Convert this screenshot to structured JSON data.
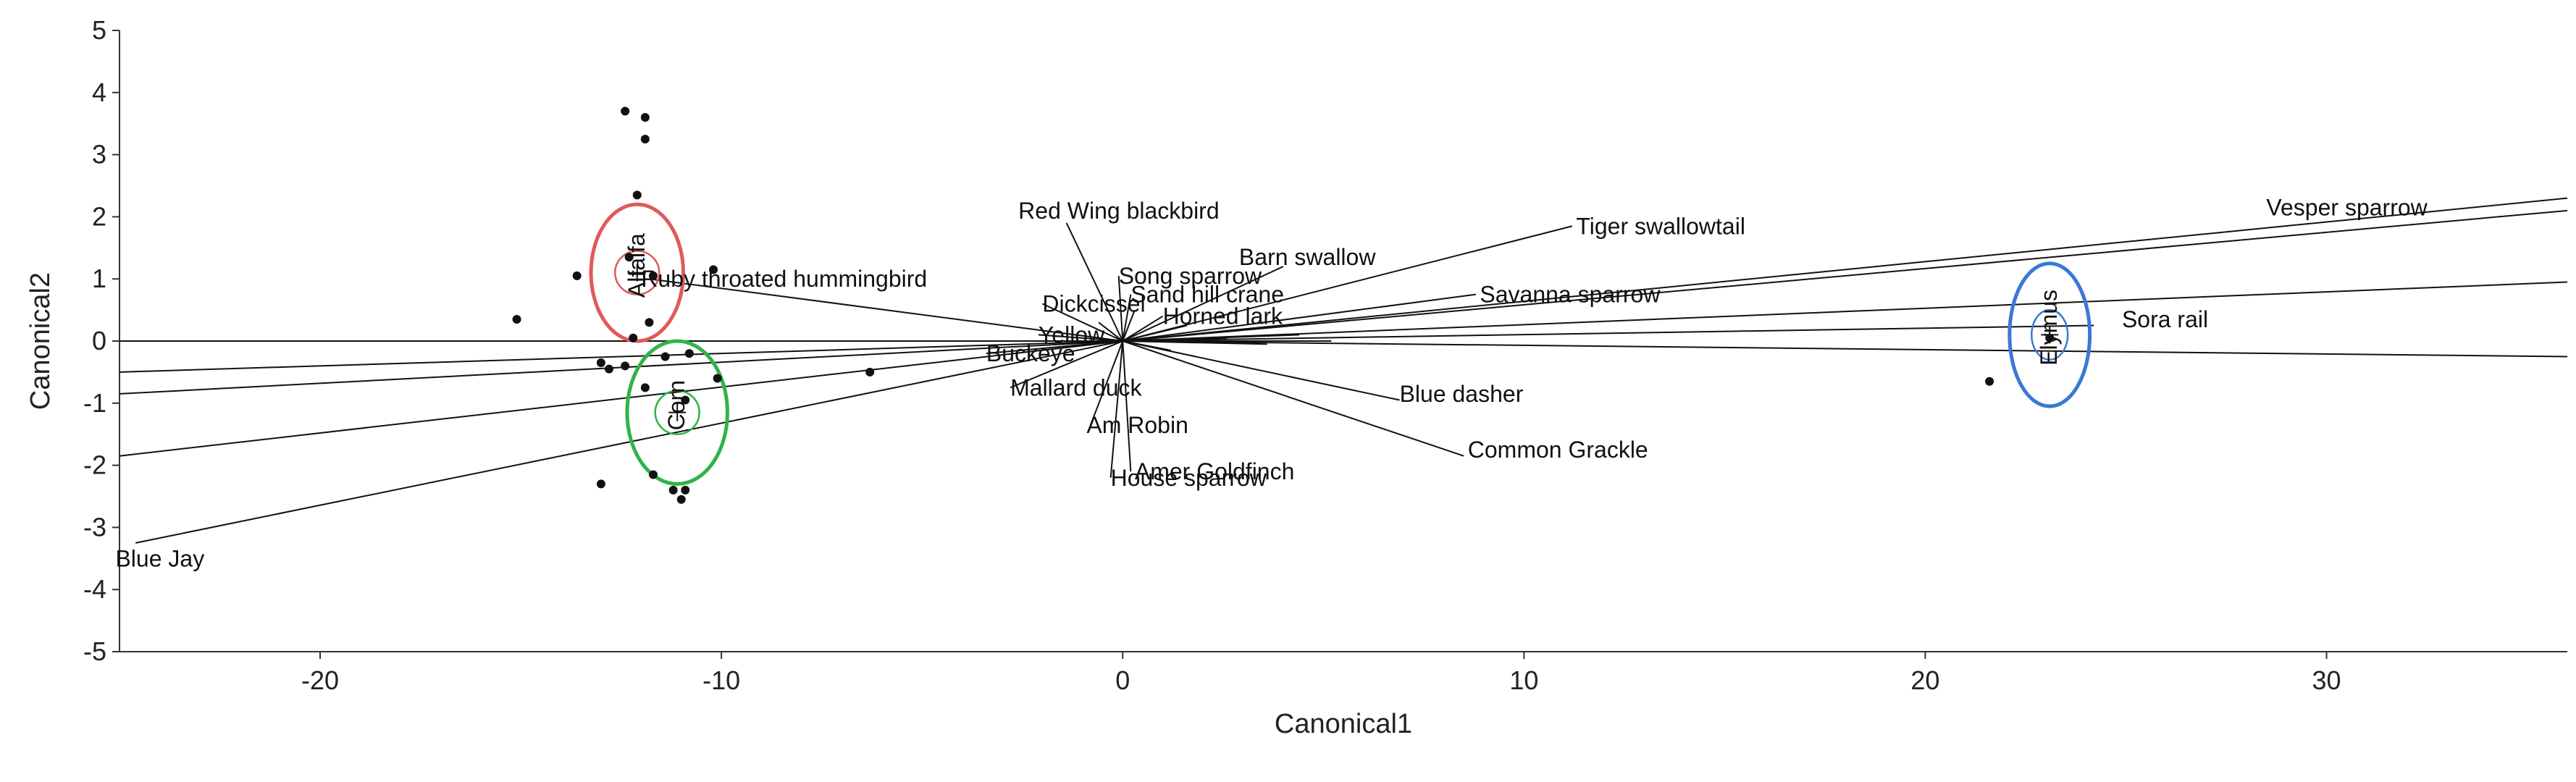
{
  "chart_data": {
    "type": "scatter",
    "title": "",
    "xlabel": "Canonical1",
    "ylabel": "Canonical2",
    "xlim": [
      -25,
      36
    ],
    "ylim": [
      -5,
      5
    ],
    "xticks": [
      -20,
      -10,
      0,
      10,
      20,
      30
    ],
    "yticks": [
      5,
      4,
      3,
      2,
      1,
      0,
      -1,
      -2,
      -3,
      -4,
      -5
    ],
    "grid": false,
    "legend": "none",
    "colors": {
      "Alfalfa": "#e05a5a",
      "Corn": "#2fb34a",
      "Elymus": "#3a78d4",
      "rays": "#111111",
      "points": "#111111"
    },
    "groups": [
      {
        "name": "Alfalfa",
        "center": [
          -12.1,
          1.1
        ],
        "inner_radius": [
          0.55,
          0.35
        ],
        "outer_radius": [
          1.15,
          1.1
        ]
      },
      {
        "name": "Corn",
        "center": [
          -11.1,
          -1.15
        ],
        "inner_radius": [
          0.55,
          0.35
        ],
        "outer_radius": [
          1.25,
          1.15
        ]
      },
      {
        "name": "Elymus",
        "center": [
          23.1,
          0.1
        ],
        "inner_radius": [
          0.45,
          0.4
        ],
        "outer_radius": [
          1.0,
          1.15
        ]
      }
    ],
    "points": [
      [
        -12.4,
        3.7
      ],
      [
        -11.9,
        3.6
      ],
      [
        -11.9,
        3.25
      ],
      [
        -12.1,
        2.35
      ],
      [
        -12.3,
        1.35
      ],
      [
        -13.6,
        1.05
      ],
      [
        -11.7,
        1.05
      ],
      [
        -10.2,
        1.15
      ],
      [
        -15.1,
        0.35
      ],
      [
        -11.8,
        0.3
      ],
      [
        -12.2,
        0.05
      ],
      [
        -13.0,
        -0.35
      ],
      [
        -12.8,
        -0.45
      ],
      [
        -12.4,
        -0.4
      ],
      [
        -11.4,
        -0.25
      ],
      [
        -10.8,
        -0.2
      ],
      [
        -11.9,
        -0.75
      ],
      [
        -10.9,
        -0.95
      ],
      [
        -10.1,
        -0.6
      ],
      [
        -6.3,
        -0.5
      ],
      [
        -11.7,
        -2.15
      ],
      [
        -13.0,
        -2.3
      ],
      [
        -11.2,
        -2.4
      ],
      [
        -10.9,
        -2.4
      ],
      [
        -11.0,
        -2.55
      ],
      [
        23.1,
        0.05
      ],
      [
        21.6,
        -0.65
      ]
    ],
    "vectors": [
      {
        "label": "Vesper sparrow",
        "end": [
          36,
          2.3
        ],
        "label_at": [
          28.5,
          2.15
        ]
      },
      {
        "label": "",
        "end": [
          36,
          2.1
        ],
        "label_at": null
      },
      {
        "label": "Tiger swallowtail",
        "end": [
          11.2,
          1.85
        ],
        "label_at": [
          11.3,
          1.85
        ]
      },
      {
        "label": "Barn swallow",
        "end": [
          4.0,
          1.2
        ],
        "label_at": [
          2.9,
          1.35
        ]
      },
      {
        "label": "Savanna sparrow",
        "end": [
          8.8,
          0.75
        ],
        "label_at": [
          8.9,
          0.75
        ]
      },
      {
        "label": "",
        "end": [
          36,
          0.95
        ],
        "label_at": null
      },
      {
        "label": "Sora rail",
        "end": [
          24.2,
          0.25
        ],
        "label_at": [
          24.9,
          0.35
        ]
      },
      {
        "label": "",
        "end": [
          36,
          -0.25
        ],
        "label_at": null
      },
      {
        "label": "Blue dasher",
        "end": [
          6.9,
          -0.95
        ],
        "label_at": [
          6.9,
          -0.85
        ]
      },
      {
        "label": "Common Grackle",
        "end": [
          8.5,
          -1.85
        ],
        "label_at": [
          8.6,
          -1.75
        ]
      },
      {
        "label": "Amer Goldfinch",
        "end": [
          0.2,
          -2.1
        ],
        "label_at": [
          0.3,
          -2.1
        ]
      },
      {
        "label": "House sparrow",
        "end": [
          -0.3,
          -2.2
        ],
        "label_at": [
          -0.3,
          -2.2
        ]
      },
      {
        "label": "Am Robin",
        "end": [
          -0.8,
          -1.35
        ],
        "label_at": [
          -0.9,
          -1.35
        ]
      },
      {
        "label": "Mallard duck",
        "end": [
          -2.8,
          -0.75
        ],
        "label_at": [
          -2.8,
          -0.75
        ]
      },
      {
        "label": "Buckeye",
        "end": [
          -3.4,
          -0.2
        ],
        "label_at": [
          -3.4,
          -0.2
        ]
      },
      {
        "label": "Yellow",
        "end": [
          -2.1,
          0.1
        ],
        "label_at": [
          -2.1,
          0.1
        ]
      },
      {
        "label": "Dickcissel",
        "end": [
          -2.0,
          0.6
        ],
        "label_at": [
          -2.0,
          0.6
        ]
      },
      {
        "label": "Song sparrow",
        "end": [
          -0.1,
          1.05
        ],
        "label_at": [
          -0.1,
          1.05
        ]
      },
      {
        "label": "Sand hill crane",
        "end": [
          0.2,
          0.75
        ],
        "label_at": [
          0.2,
          0.75
        ]
      },
      {
        "label": "Horned lark",
        "end": [
          1.0,
          0.4
        ],
        "label_at": [
          1.0,
          0.4
        ]
      },
      {
        "label": "Red Wing blackbird",
        "end": [
          -1.4,
          1.9
        ],
        "label_at": [
          -2.6,
          2.1
        ]
      },
      {
        "label": "Ruby throated hummingbird",
        "end": [
          -11.8,
          1.0
        ],
        "label_at": [
          -12.0,
          1.0
        ]
      },
      {
        "label": "",
        "end": [
          -25,
          0.0
        ],
        "label_at": null
      },
      {
        "label": "",
        "end": [
          -25,
          -0.5
        ],
        "label_at": null
      },
      {
        "label": "",
        "end": [
          -25,
          -0.85
        ],
        "label_at": null
      },
      {
        "label": "",
        "end": [
          -25,
          -1.85
        ],
        "label_at": null
      },
      {
        "label": "Blue Jay",
        "end": [
          -24.6,
          -3.25
        ],
        "label_at": [
          -25.1,
          -3.5
        ]
      },
      {
        "label": "",
        "end": [
          1.6,
          0.25
        ],
        "label_at": null
      },
      {
        "label": "",
        "end": [
          2.6,
          0.05
        ],
        "label_at": null
      },
      {
        "label": "",
        "end": [
          3.6,
          -0.05
        ],
        "label_at": null
      },
      {
        "label": "",
        "end": [
          4.4,
          0.1
        ],
        "label_at": null
      },
      {
        "label": "",
        "end": [
          5.2,
          0.0
        ],
        "label_at": null
      },
      {
        "label": "",
        "end": [
          1.2,
          -0.15
        ],
        "label_at": null
      },
      {
        "label": "",
        "end": [
          0.3,
          0.5
        ],
        "label_at": null
      },
      {
        "label": "",
        "end": [
          -0.6,
          0.3
        ],
        "label_at": null
      }
    ]
  }
}
